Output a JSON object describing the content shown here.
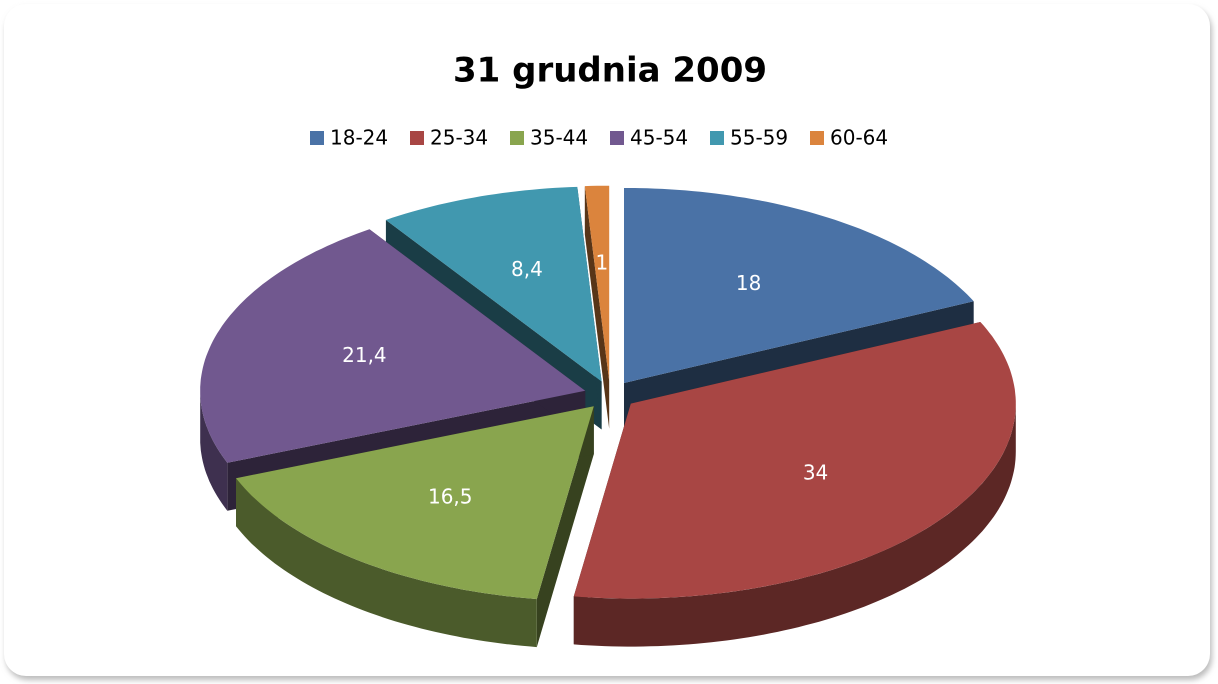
{
  "chart_data": {
    "type": "pie",
    "title": "31 grudnia 2009",
    "categories": [
      "18-24",
      "25-34",
      "35-44",
      "45-54",
      "55-59",
      "60-64"
    ],
    "values": [
      18,
      34,
      16.5,
      21.4,
      8.4,
      1
    ],
    "value_labels": [
      "18",
      "34",
      "16,5",
      "21,4",
      "8,4",
      "1"
    ],
    "colors": [
      "#4a72a6",
      "#a84644",
      "#89a54e",
      "#71588f",
      "#4198af",
      "#db843d"
    ],
    "legend": "top"
  }
}
